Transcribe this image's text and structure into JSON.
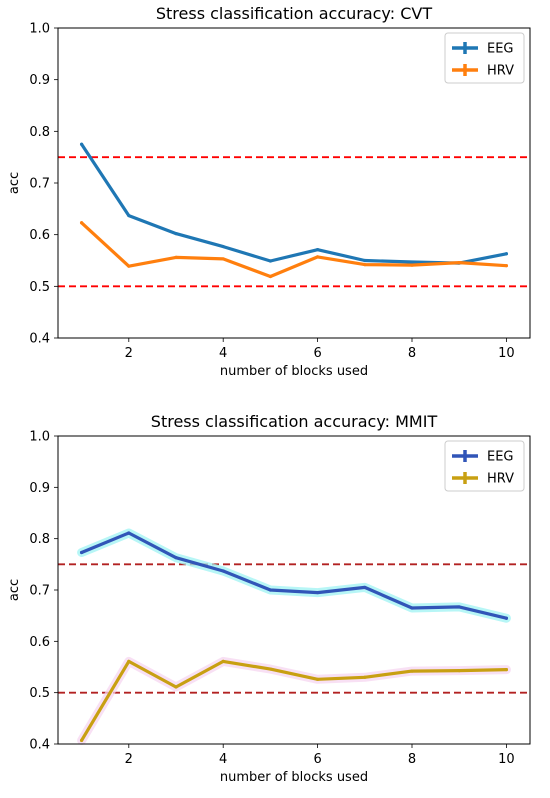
{
  "chart_data": [
    {
      "type": "line",
      "title": "Stress classification accuracy: CVT",
      "xlabel": "number of blocks used",
      "ylabel": "acc",
      "x": [
        1,
        2,
        3,
        4,
        5,
        6,
        7,
        8,
        9,
        10
      ],
      "xticks": [
        2,
        4,
        6,
        8,
        10
      ],
      "xlim": [
        0.5,
        10.5
      ],
      "ylim": [
        0.4,
        1.0
      ],
      "yticks": [
        0.4,
        0.5,
        0.6,
        0.7,
        0.8,
        0.9,
        1.0
      ],
      "ytick_labels": [
        "0.4",
        "0.5",
        "0.6",
        "0.7",
        "0.8",
        "0.9",
        "1.0"
      ],
      "legend_position": "top-right",
      "grid": false,
      "series": [
        {
          "name": "EEG",
          "color": "#1f77b4",
          "values": [
            0.775,
            0.637,
            0.602,
            0.577,
            0.549,
            0.571,
            0.55,
            0.547,
            0.545,
            0.563
          ]
        },
        {
          "name": "HRV",
          "color": "#ff7f0e",
          "values": [
            0.623,
            0.539,
            0.556,
            0.553,
            0.519,
            0.557,
            0.542,
            0.541,
            0.546,
            0.54
          ]
        }
      ],
      "hlines": [
        {
          "y": 0.75,
          "color": "#ff0000",
          "style": "dashed"
        },
        {
          "y": 0.5,
          "color": "#ff0000",
          "style": "dashed"
        }
      ]
    },
    {
      "type": "line",
      "title": "Stress classification accuracy: MMIT",
      "xlabel": "number of blocks used",
      "ylabel": "acc",
      "x": [
        1,
        2,
        3,
        4,
        5,
        6,
        7,
        8,
        9,
        10
      ],
      "xticks": [
        2,
        4,
        6,
        8,
        10
      ],
      "xlim": [
        0.5,
        10.5
      ],
      "ylim": [
        0.4,
        1.0
      ],
      "yticks": [
        0.4,
        0.5,
        0.6,
        0.7,
        0.8,
        0.9,
        1.0
      ],
      "ytick_labels": [
        "0.4",
        "0.5",
        "0.6",
        "0.7",
        "0.8",
        "0.9",
        "1.0"
      ],
      "legend_position": "top-right",
      "grid": false,
      "series": [
        {
          "name": "EEG",
          "color": "#3155b8",
          "band_color": "#9ff3f3",
          "values": [
            0.773,
            0.811,
            0.763,
            0.737,
            0.7,
            0.695,
            0.705,
            0.665,
            0.667,
            0.645
          ]
        },
        {
          "name": "HRV",
          "color": "#c8a012",
          "band_color": "#f6d6f0",
          "values": [
            0.407,
            0.561,
            0.511,
            0.561,
            0.546,
            0.526,
            0.53,
            0.542,
            0.543,
            0.545
          ]
        }
      ],
      "hlines": [
        {
          "y": 0.75,
          "color": "#b22222",
          "style": "dashed"
        },
        {
          "y": 0.5,
          "color": "#b22222",
          "style": "dashed"
        }
      ]
    }
  ]
}
